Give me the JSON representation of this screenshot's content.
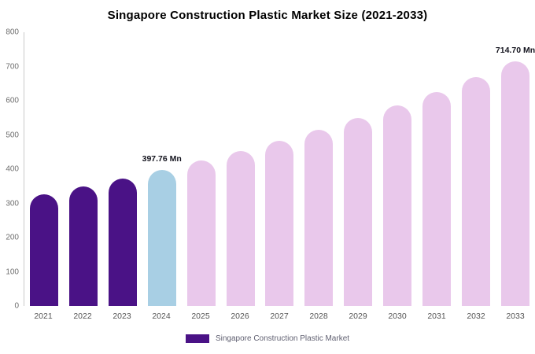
{
  "title": "Singapore Construction Plastic Market Size (2021-2033)",
  "legend": {
    "label": "Singapore Construction Plastic Market",
    "swatch_color": "#4a1286"
  },
  "colors": {
    "historical_bar": "#4a1286",
    "highlight_bar": "#a8cfe4",
    "forecast_bar": "#e9c8eb",
    "axis_line": "#c9c9c9",
    "tick_text": "#6e6e6e",
    "annotation_text": "#14141e"
  },
  "chart_data": {
    "type": "bar",
    "title": "Singapore Construction Plastic Market Size (2021-2033)",
    "categories": [
      "2021",
      "2022",
      "2023",
      "2024",
      "2025",
      "2026",
      "2027",
      "2028",
      "2029",
      "2030",
      "2031",
      "2032",
      "2033"
    ],
    "values": [
      327.5,
      349.5,
      372.9,
      397.76,
      424.4,
      452.9,
      483.2,
      515.6,
      550.1,
      587.0,
      626.3,
      668.2,
      714.7
    ],
    "bar_colors": [
      "#4a1286",
      "#4a1286",
      "#4a1286",
      "#a8cfe4",
      "#e9c8eb",
      "#e9c8eb",
      "#e9c8eb",
      "#e9c8eb",
      "#e9c8eb",
      "#e9c8eb",
      "#e9c8eb",
      "#e9c8eb",
      "#e9c8eb"
    ],
    "ylim": [
      0,
      800
    ],
    "yticks": [
      0,
      100,
      200,
      300,
      400,
      500,
      600,
      700,
      800
    ],
    "annotations": [
      {
        "category": "2024",
        "text": "397.76 Mn"
      },
      {
        "category": "2033",
        "text": "714.70 Mn"
      }
    ],
    "xlabel": "",
    "ylabel": "",
    "grid": false,
    "legend_entries": [
      "Singapore Construction Plastic Market"
    ],
    "legend_position": "bottom"
  }
}
